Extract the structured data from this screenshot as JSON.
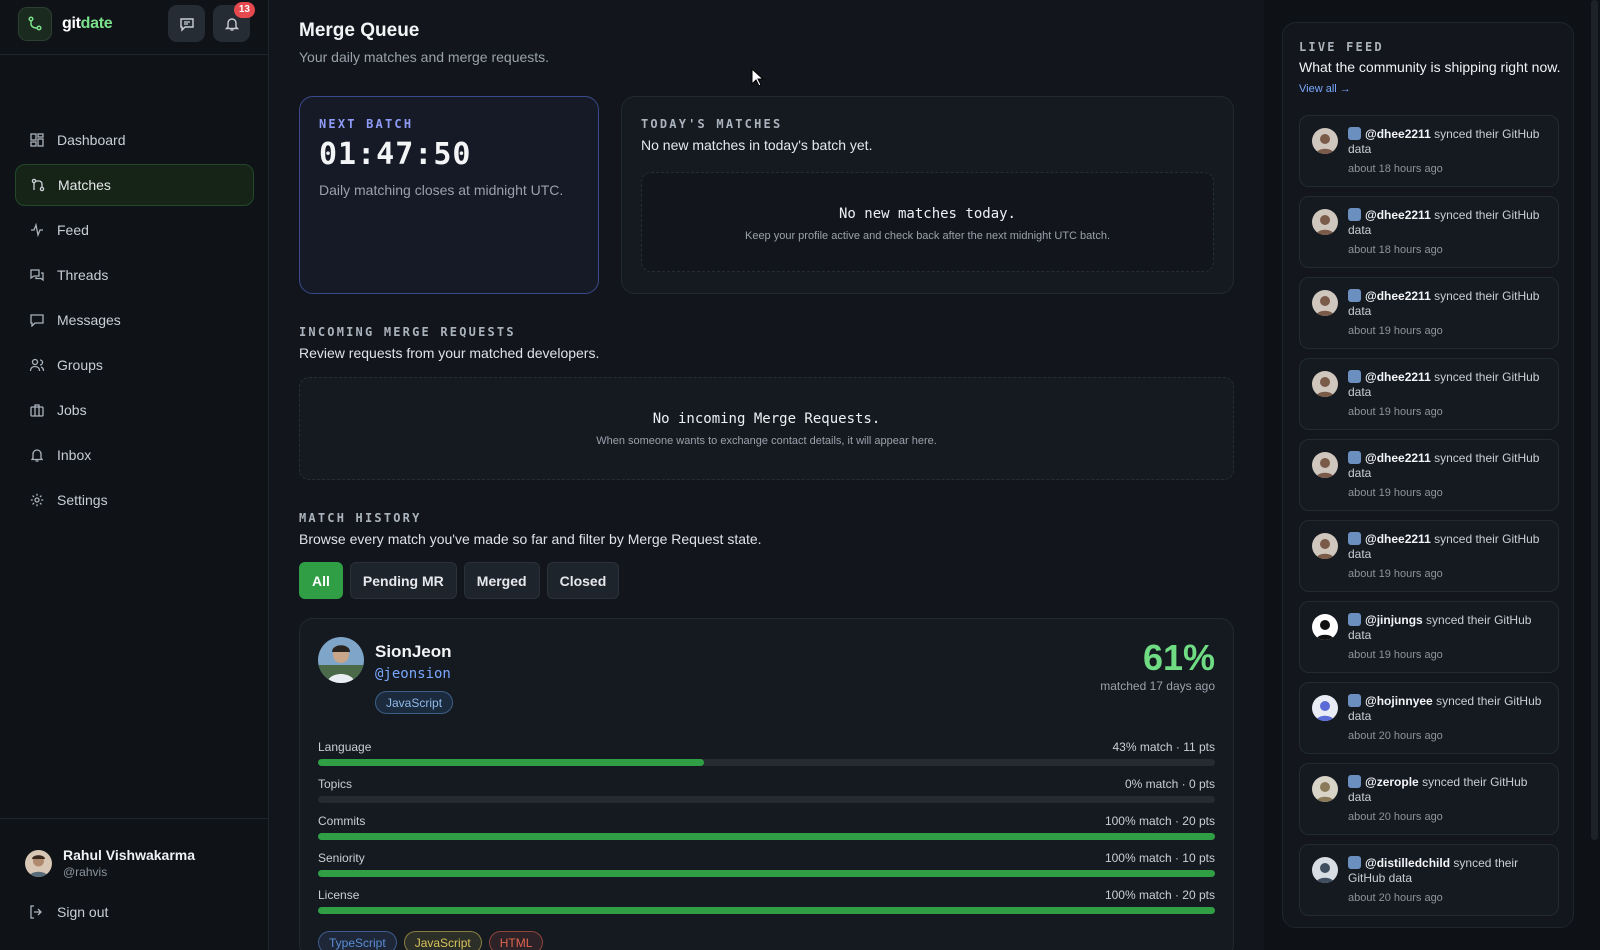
{
  "brand": {
    "prefix": "git",
    "suffix": "date"
  },
  "notifications": {
    "count": "13"
  },
  "nav": [
    {
      "label": "Dashboard",
      "icon": "dashboard-icon"
    },
    {
      "label": "Matches",
      "icon": "merge-icon",
      "active": true
    },
    {
      "label": "Feed",
      "icon": "activity-icon"
    },
    {
      "label": "Threads",
      "icon": "threads-icon"
    },
    {
      "label": "Messages",
      "icon": "message-icon"
    },
    {
      "label": "Groups",
      "icon": "users-icon"
    },
    {
      "label": "Jobs",
      "icon": "briefcase-icon"
    },
    {
      "label": "Inbox",
      "icon": "bell-icon"
    },
    {
      "label": "Settings",
      "icon": "gear-icon"
    }
  ],
  "user": {
    "name": "Rahul Vishwakarma",
    "handle": "@rahvis"
  },
  "signout": "Sign out",
  "page": {
    "title": "Merge Queue",
    "subtitle": "Your daily matches and merge requests."
  },
  "next_batch": {
    "label": "NEXT BATCH",
    "timer": "01:47:50",
    "note": "Daily matching closes at midnight UTC."
  },
  "todays_matches": {
    "label": "TODAY'S MATCHES",
    "sub": "No new matches in today's batch yet.",
    "empty_title": "No new matches today.",
    "empty_sub": "Keep your profile active and check back after the next midnight UTC batch."
  },
  "incoming": {
    "label": "INCOMING MERGE REQUESTS",
    "sub": "Review requests from your matched developers.",
    "empty_title": "No incoming Merge Requests.",
    "empty_sub": "When someone wants to exchange contact details, it will appear here."
  },
  "history": {
    "label": "MATCH HISTORY",
    "sub": "Browse every match you've made so far and filter by Merge Request state.",
    "filters": [
      "All",
      "Pending MR",
      "Merged",
      "Closed"
    ]
  },
  "match": {
    "name": "SionJeon",
    "handle": "@jeonsion",
    "tag": "JavaScript",
    "percent": "61%",
    "matched_ago": "matched 17 days ago",
    "metrics": [
      {
        "label": "Language",
        "value": "43% match · 11 pts",
        "fraction": 0.43
      },
      {
        "label": "Topics",
        "value": "0% match · 0 pts",
        "fraction": 0
      },
      {
        "label": "Commits",
        "value": "100% match · 20 pts",
        "fraction": 1
      },
      {
        "label": "Seniority",
        "value": "100% match · 10 pts",
        "fraction": 1
      },
      {
        "label": "License",
        "value": "100% match · 20 pts",
        "fraction": 1
      }
    ],
    "languages": [
      {
        "name": "TypeScript",
        "color": "#5b8dd6"
      },
      {
        "name": "JavaScript",
        "color": "#d9c35a"
      },
      {
        "name": "HTML",
        "color": "#e0654f"
      }
    ]
  },
  "feed": {
    "title": "LIVE FEED",
    "sub": "What the community is shipping right now.",
    "link": "View all →",
    "action": "synced their GitHub data",
    "items": [
      {
        "user": "@dhee2211",
        "time": "about 18 hours ago"
      },
      {
        "user": "@dhee2211",
        "time": "about 18 hours ago"
      },
      {
        "user": "@dhee2211",
        "time": "about 19 hours ago"
      },
      {
        "user": "@dhee2211",
        "time": "about 19 hours ago"
      },
      {
        "user": "@dhee2211",
        "time": "about 19 hours ago"
      },
      {
        "user": "@dhee2211",
        "time": "about 19 hours ago"
      },
      {
        "user": "@jinjungs",
        "time": "about 19 hours ago"
      },
      {
        "user": "@hojinnyee",
        "time": "about 20 hours ago"
      },
      {
        "user": "@zerople",
        "time": "about 20 hours ago"
      },
      {
        "user": "@distilledchild",
        "time": "about 20 hours ago"
      }
    ]
  },
  "colors": {
    "accent": "#2f9e44",
    "accent_text": "#6fdc83",
    "link": "#7aa7ff",
    "badge": "#e5484d"
  }
}
